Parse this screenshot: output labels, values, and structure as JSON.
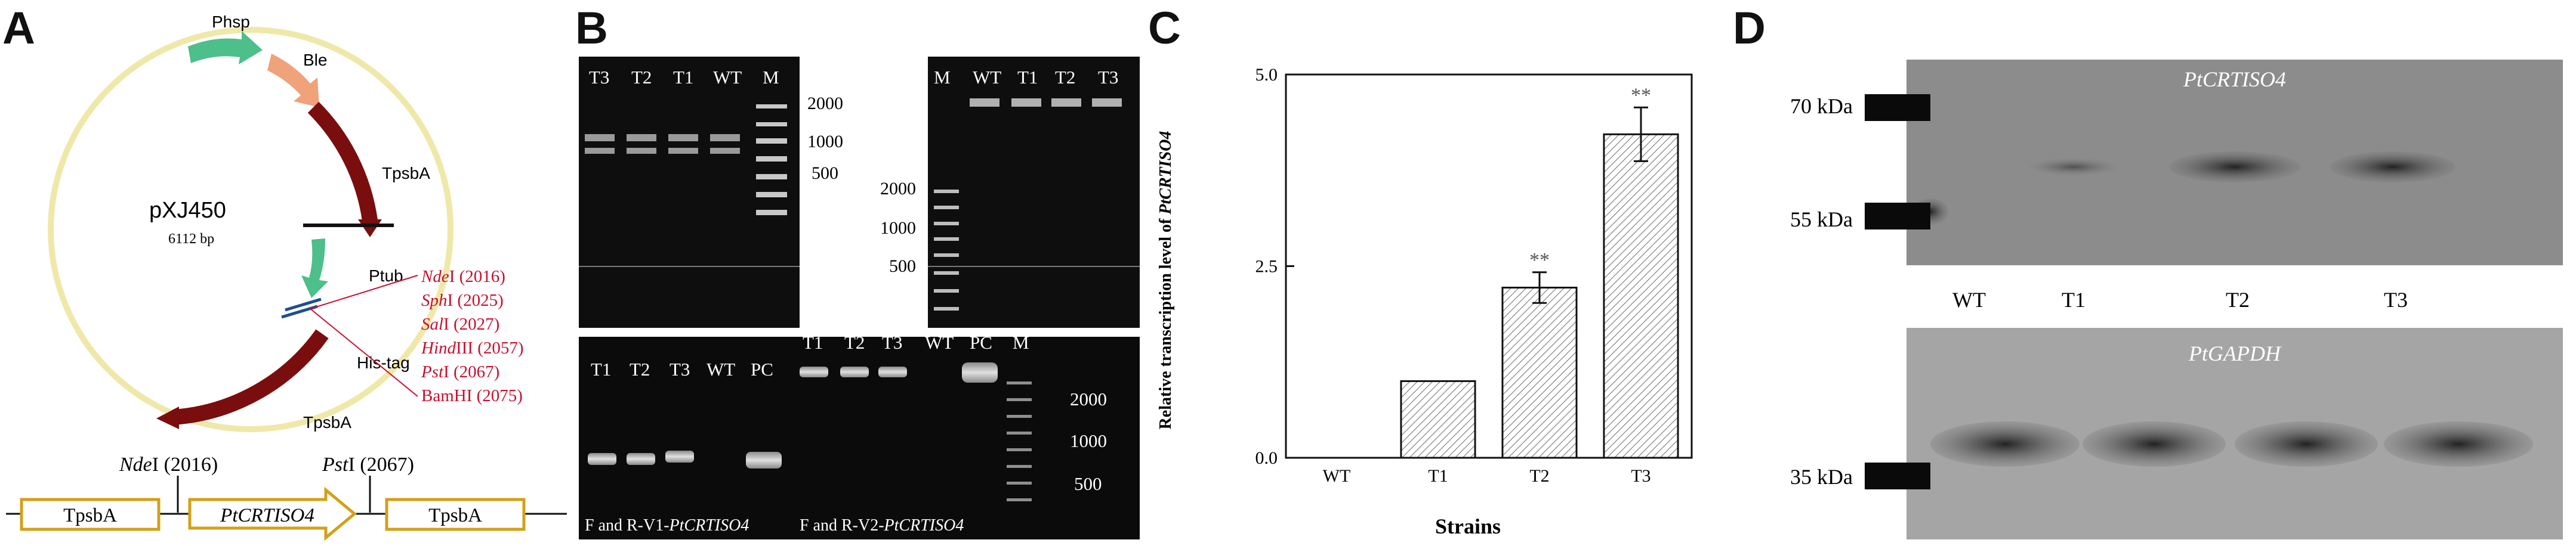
{
  "panels": {
    "a": {
      "letter": "A",
      "plasmid": {
        "name": "pXJ450",
        "size": "6112 bp"
      },
      "features": {
        "phsp": "Phsp",
        "ble": "Ble",
        "tpsba_top": "TpsbA",
        "ptub": "Ptub",
        "histag": "His-tag",
        "tpsba_bottom": "TpsbA"
      },
      "sites": [
        {
          "italic": "Nde",
          "rest": "I (2016)"
        },
        {
          "italic": "Sph",
          "rest": "I (2025)"
        },
        {
          "italic": "Sal",
          "rest": "I  (2027)"
        },
        {
          "italic": "Hind",
          "rest": "III (2057)"
        },
        {
          "italic": "Pst",
          "rest": "I (2067)"
        },
        {
          "italic": "",
          "rest": "BamHI (2075)"
        }
      ],
      "construct": {
        "nde": {
          "italic": "Nde",
          "rest": "I (2016)"
        },
        "pst": {
          "italic": "Pst",
          "rest": "I (2067)"
        },
        "left": "TpsbA",
        "gene": "PtCRTISO4",
        "right": "TpsbA"
      }
    },
    "b": {
      "letter": "B",
      "gel1": {
        "lanes": [
          "T3",
          "T2",
          "T1",
          "WT",
          "M"
        ],
        "markers": [
          "2000",
          "1000",
          "500"
        ]
      },
      "gel2": {
        "lanes": [
          "M",
          "WT",
          "T1",
          "T2",
          "T3"
        ],
        "markers": [
          "2000",
          "1000",
          "500"
        ]
      },
      "gel3": {
        "lanes_left": [
          "T1",
          "T2",
          "T3",
          "WT",
          "PC"
        ],
        "lanes_right": [
          "T1",
          "T2",
          "T3",
          "WT",
          "PC",
          "M"
        ],
        "markers": [
          "2000",
          "1000",
          "500"
        ],
        "caption_left": {
          "prefix": "F and R-V1-",
          "gene": "PtCRTISO4"
        },
        "caption_right": {
          "prefix": "F and R-V2-",
          "gene": "PtCRTISO4"
        }
      }
    },
    "c": {
      "letter": "C"
    },
    "d": {
      "letter": "D",
      "top_label": "PtCRTISO4",
      "bottom_label": "PtGAPDH",
      "lanes": [
        "WT",
        "T1",
        "T2",
        "T3"
      ],
      "markers": [
        "70 kDa",
        "55 kDa",
        "35 kDa"
      ]
    }
  },
  "chart_data": {
    "type": "bar",
    "categories": [
      "WT",
      "T1",
      "T2",
      "T3"
    ],
    "values": [
      0,
      1.0,
      2.22,
      4.22
    ],
    "errors": [
      0,
      0,
      0.2,
      0.35
    ],
    "significance": [
      "",
      "",
      "**",
      "**"
    ],
    "ylabel": {
      "prefix": "Relative transcription level of ",
      "gene": "PtCRTISO4"
    },
    "xlabel": "Strains",
    "ylim": [
      0,
      5
    ],
    "yticks": [
      "0.0",
      "2.5",
      "5.0"
    ],
    "bar_fill": "diagonal hatch",
    "grid": false,
    "legend": "none"
  }
}
